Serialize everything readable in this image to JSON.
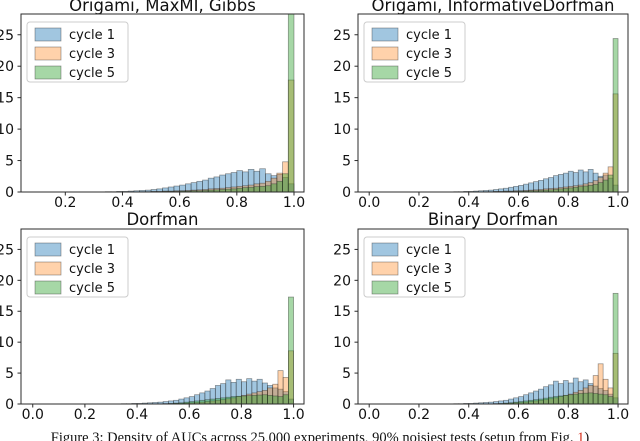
{
  "figure": {
    "caption": {
      "prefix": "Figure 3: Density of AUCs across 25,000 experiments, 90% noisiest tests (setup from Fig. ",
      "ref": "1",
      "suffix": ")",
      "ref_color": "#d6301d"
    }
  },
  "legend": {
    "entries": [
      "cycle 1",
      "cycle 3",
      "cycle 5"
    ]
  },
  "colors": {
    "cycle1": "#1f77b4",
    "cycle3": "#ff7f0e",
    "cycle5": "#2ca02c",
    "spine": "#2b2b2b",
    "bar_edge": "rgba(40,40,40,0.5)"
  },
  "chart_data": [
    {
      "type": "bar",
      "subtype": "overlaid-histogram",
      "title": "Origami, MaxMI, Gibbs",
      "xlabel": "",
      "ylabel": "",
      "grid": false,
      "legend_position": "upper-left",
      "bin_start": 0.3,
      "bin_width": 0.02,
      "xlim": [
        0.045,
        1.035
      ],
      "ylim": [
        0,
        28.3
      ],
      "xticks": [
        0.2,
        0.4,
        0.6,
        0.8,
        1.0
      ],
      "xtick_labels": [
        "0.2",
        "0.4",
        "0.6",
        "0.8",
        "1.0"
      ],
      "yticks": [
        0,
        5,
        10,
        15,
        20,
        25
      ],
      "ytick_labels": [
        "0",
        "5",
        "10",
        "15",
        "20",
        "25"
      ],
      "series": [
        {
          "name": "cycle 1",
          "color": "#1f77b4",
          "opacity": 0.42,
          "values": [
            0,
            0,
            0.05,
            0.05,
            0.1,
            0.1,
            0.15,
            0.2,
            0.25,
            0.3,
            0.4,
            0.5,
            0.65,
            0.8,
            0.95,
            1.1,
            1.3,
            1.5,
            1.7,
            1.9,
            2.2,
            2.4,
            2.7,
            2.9,
            3.1,
            3.4,
            3.2,
            3.6,
            3.3,
            3.7,
            2.9,
            2.6,
            2.8,
            2.3,
            1.3
          ]
        },
        {
          "name": "cycle 3",
          "color": "#ff7f0e",
          "opacity": 0.35,
          "values": [
            0,
            0,
            0,
            0,
            0,
            0,
            0,
            0,
            0.05,
            0.05,
            0.1,
            0.1,
            0.15,
            0.15,
            0.2,
            0.2,
            0.25,
            0.3,
            0.35,
            0.4,
            0.5,
            0.55,
            0.6,
            0.7,
            0.8,
            0.9,
            1.0,
            1.1,
            1.3,
            1.4,
            1.7,
            2.2,
            3.0,
            4.8,
            17.8
          ]
        },
        {
          "name": "cycle 5",
          "color": "#2ca02c",
          "opacity": 0.42,
          "values": [
            0,
            0,
            0,
            0,
            0,
            0,
            0,
            0,
            0,
            0,
            0.05,
            0.05,
            0.1,
            0.1,
            0.1,
            0.15,
            0.15,
            0.2,
            0.2,
            0.25,
            0.3,
            0.35,
            0.4,
            0.45,
            0.5,
            0.6,
            0.7,
            0.75,
            0.85,
            0.9,
            1.0,
            1.3,
            1.7,
            2.9,
            28.3
          ]
        }
      ]
    },
    {
      "type": "bar",
      "subtype": "overlaid-histogram",
      "title": "Origami, InformativeDorfman",
      "xlabel": "",
      "ylabel": "",
      "grid": false,
      "legend_position": "upper-left",
      "bin_start": 0.3,
      "bin_width": 0.02,
      "xlim": [
        -0.045,
        1.04
      ],
      "ylim": [
        0,
        28.3
      ],
      "xticks": [
        0.0,
        0.2,
        0.4,
        0.6,
        0.8,
        1.0
      ],
      "xtick_labels": [
        "0.0",
        "0.2",
        "0.4",
        "0.6",
        "0.8",
        "1.0"
      ],
      "yticks": [
        0,
        5,
        10,
        15,
        20,
        25
      ],
      "ytick_labels": [
        "0",
        "5",
        "10",
        "15",
        "20",
        "25"
      ],
      "series": [
        {
          "name": "cycle 1",
          "color": "#1f77b4",
          "opacity": 0.42,
          "values": [
            0,
            0,
            0.05,
            0.05,
            0.1,
            0.1,
            0.15,
            0.2,
            0.25,
            0.3,
            0.4,
            0.5,
            0.6,
            0.75,
            0.9,
            1.05,
            1.25,
            1.45,
            1.65,
            1.85,
            2.1,
            2.3,
            2.6,
            2.8,
            3.0,
            3.3,
            3.1,
            3.5,
            3.2,
            3.6,
            3.0,
            2.5,
            2.7,
            2.2,
            1.1
          ]
        },
        {
          "name": "cycle 3",
          "color": "#ff7f0e",
          "opacity": 0.35,
          "values": [
            0,
            0,
            0,
            0,
            0,
            0,
            0,
            0,
            0.05,
            0.05,
            0.1,
            0.1,
            0.15,
            0.15,
            0.2,
            0.2,
            0.25,
            0.3,
            0.35,
            0.4,
            0.5,
            0.55,
            0.6,
            0.7,
            0.8,
            0.9,
            1.0,
            1.1,
            1.3,
            1.5,
            1.8,
            2.3,
            3.0,
            4.0,
            15.6
          ]
        },
        {
          "name": "cycle 5",
          "color": "#2ca02c",
          "opacity": 0.42,
          "values": [
            0,
            0,
            0,
            0,
            0,
            0,
            0,
            0,
            0,
            0,
            0.05,
            0.05,
            0.1,
            0.1,
            0.1,
            0.15,
            0.15,
            0.2,
            0.2,
            0.25,
            0.3,
            0.35,
            0.4,
            0.5,
            0.55,
            0.65,
            0.75,
            0.85,
            0.95,
            1.05,
            1.2,
            1.5,
            1.9,
            2.7,
            24.4
          ]
        }
      ]
    },
    {
      "type": "bar",
      "subtype": "overlaid-histogram",
      "title": "Dorfman",
      "xlabel": "",
      "ylabel": "",
      "grid": false,
      "legend_position": "upper-left",
      "bin_start": 0.3,
      "bin_width": 0.02,
      "xlim": [
        -0.045,
        1.04
      ],
      "ylim": [
        0,
        28.3
      ],
      "xticks": [
        0.0,
        0.2,
        0.4,
        0.6,
        0.8,
        1.0
      ],
      "xtick_labels": [
        "0.0",
        "0.2",
        "0.4",
        "0.6",
        "0.8",
        "1.0"
      ],
      "yticks": [
        0,
        5,
        10,
        15,
        20,
        25
      ],
      "ytick_labels": [
        "0",
        "5",
        "10",
        "15",
        "20",
        "25"
      ],
      "series": [
        {
          "name": "cycle 1",
          "color": "#1f77b4",
          "opacity": 0.42,
          "values": [
            0,
            0,
            0.05,
            0.05,
            0.1,
            0.1,
            0.15,
            0.2,
            0.25,
            0.3,
            0.4,
            0.5,
            0.6,
            0.8,
            1.0,
            1.2,
            1.5,
            1.8,
            2.1,
            2.5,
            3.0,
            3.3,
            3.9,
            3.5,
            4.0,
            3.6,
            4.1,
            3.7,
            4.0,
            3.4,
            3.0,
            2.6,
            2.4,
            2.0,
            0.8
          ]
        },
        {
          "name": "cycle 3",
          "color": "#ff7f0e",
          "opacity": 0.35,
          "values": [
            0,
            0,
            0,
            0,
            0,
            0,
            0,
            0,
            0,
            0,
            0.05,
            0.05,
            0.1,
            0.1,
            0.15,
            0.2,
            0.25,
            0.3,
            0.4,
            0.5,
            0.6,
            0.7,
            0.85,
            1.0,
            1.2,
            1.4,
            1.6,
            1.8,
            2.0,
            2.2,
            2.6,
            3.2,
            5.4,
            4.3,
            8.6
          ]
        },
        {
          "name": "cycle 5",
          "color": "#2ca02c",
          "opacity": 0.42,
          "values": [
            0,
            0,
            0,
            0,
            0,
            0,
            0,
            0,
            0,
            0,
            0.05,
            0.1,
            0.15,
            0.2,
            0.3,
            0.4,
            0.5,
            0.6,
            0.7,
            0.8,
            0.9,
            1.0,
            1.1,
            1.2,
            1.25,
            1.3,
            1.35,
            1.4,
            1.45,
            1.5,
            1.4,
            1.3,
            1.2,
            1.5,
            17.3
          ]
        }
      ]
    },
    {
      "type": "bar",
      "subtype": "overlaid-histogram",
      "title": "Binary Dorfman",
      "xlabel": "",
      "ylabel": "",
      "grid": false,
      "legend_position": "upper-left",
      "bin_start": 0.3,
      "bin_width": 0.02,
      "xlim": [
        -0.045,
        1.04
      ],
      "ylim": [
        0,
        28.3
      ],
      "xticks": [
        0.0,
        0.2,
        0.4,
        0.6,
        0.8,
        1.0
      ],
      "xtick_labels": [
        "0.0",
        "0.2",
        "0.4",
        "0.6",
        "0.8",
        "1.0"
      ],
      "yticks": [
        0,
        5,
        10,
        15,
        20,
        25
      ],
      "ytick_labels": [
        "0",
        "5",
        "10",
        "15",
        "20",
        "25"
      ],
      "series": [
        {
          "name": "cycle 1",
          "color": "#1f77b4",
          "opacity": 0.42,
          "values": [
            0,
            0,
            0.05,
            0.05,
            0.1,
            0.1,
            0.15,
            0.2,
            0.25,
            0.3,
            0.4,
            0.5,
            0.6,
            0.8,
            1.0,
            1.2,
            1.5,
            1.8,
            2.1,
            2.4,
            2.8,
            3.1,
            3.7,
            3.3,
            3.8,
            3.4,
            4.2,
            3.6,
            3.9,
            3.3,
            2.9,
            2.5,
            2.2,
            1.6,
            1.0
          ]
        },
        {
          "name": "cycle 3",
          "color": "#ff7f0e",
          "opacity": 0.35,
          "values": [
            0,
            0,
            0,
            0,
            0,
            0,
            0,
            0,
            0,
            0,
            0.05,
            0.05,
            0.1,
            0.15,
            0.2,
            0.25,
            0.3,
            0.4,
            0.5,
            0.6,
            0.7,
            0.85,
            1.0,
            1.2,
            1.4,
            1.6,
            1.9,
            2.2,
            2.6,
            3.0,
            4.6,
            6.5,
            4.0,
            2.6,
            8.2
          ]
        },
        {
          "name": "cycle 5",
          "color": "#2ca02c",
          "opacity": 0.42,
          "values": [
            0,
            0,
            0,
            0,
            0,
            0,
            0,
            0,
            0,
            0,
            0.05,
            0.1,
            0.15,
            0.2,
            0.3,
            0.4,
            0.5,
            0.6,
            0.7,
            0.8,
            0.95,
            1.1,
            1.2,
            1.3,
            1.4,
            1.5,
            1.6,
            1.7,
            1.75,
            1.8,
            1.7,
            1.6,
            1.5,
            1.2,
            17.9
          ]
        }
      ]
    }
  ]
}
